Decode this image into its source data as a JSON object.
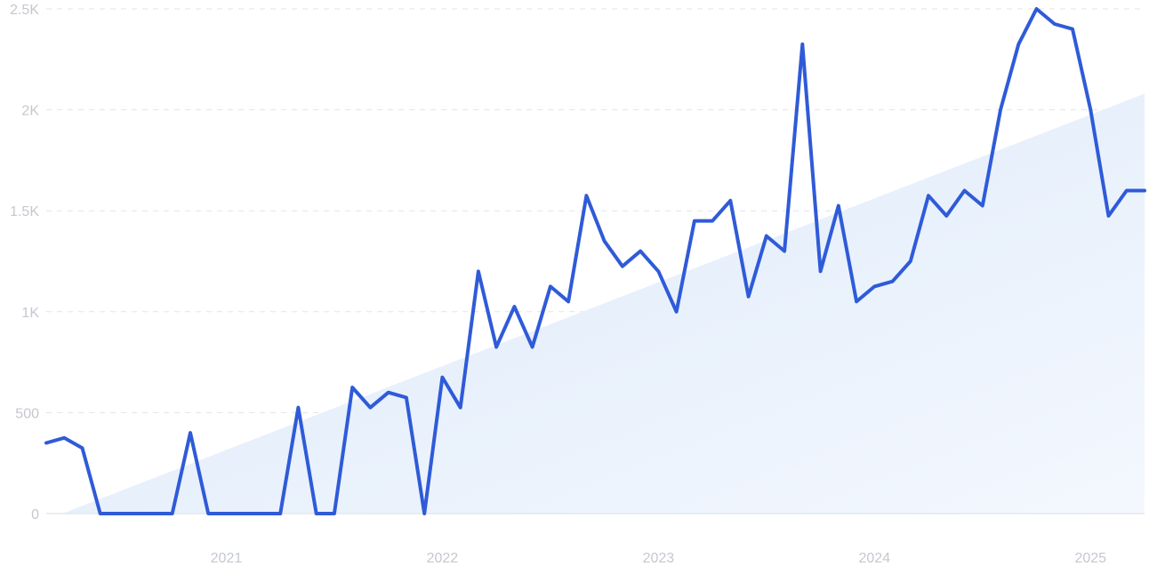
{
  "chart_data": {
    "type": "line",
    "title": "",
    "xlabel": "",
    "ylabel": "",
    "x_ticks": [
      "2021",
      "2022",
      "2023",
      "2024",
      "2025"
    ],
    "y_ticks": [
      "0",
      "500",
      "1K",
      "1.5K",
      "2K",
      "2.5K"
    ],
    "y_tick_values": [
      0,
      500,
      1000,
      1500,
      2000,
      2500
    ],
    "x_start": "2020-03",
    "xlim": [
      "2020-03",
      "2025-02"
    ],
    "ylim": [
      0,
      2500
    ],
    "grid": true,
    "legend": "none",
    "colors": {
      "line": "#2f5bd8",
      "trend_fill": "#e3eefb"
    },
    "trend": {
      "start": 0,
      "end": 2080
    },
    "series": [
      {
        "values": [
          350,
          375,
          325,
          0,
          0,
          0,
          0,
          0,
          400,
          0,
          0,
          0,
          0,
          0,
          525,
          0,
          0,
          625,
          525,
          600,
          575,
          0,
          675,
          525,
          1200,
          825,
          1025,
          825,
          1125,
          1050,
          1575,
          1350,
          1225,
          1300,
          1200,
          1000,
          1450,
          1450,
          1550,
          1075,
          1375,
          1300,
          2325,
          1200,
          1525,
          1050,
          1125,
          1150,
          1250,
          1575,
          1475,
          1600,
          1525,
          2000,
          2325,
          2500,
          2425,
          2400,
          2000,
          1475,
          1600,
          1600
        ]
      }
    ]
  }
}
